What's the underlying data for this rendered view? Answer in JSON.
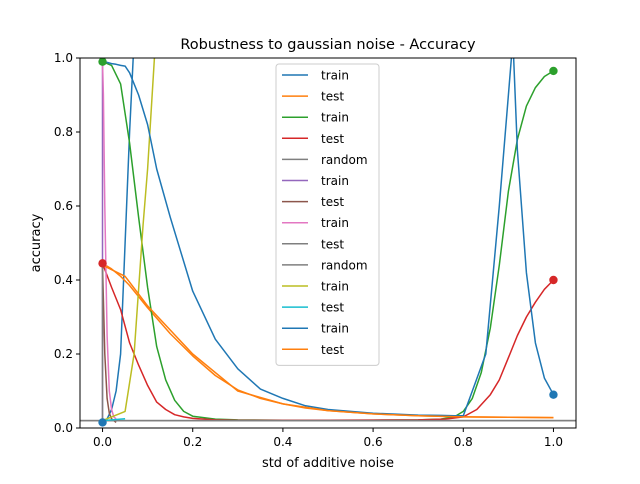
{
  "chart_data": {
    "type": "line",
    "title": "Robustness to gaussian noise - Accuracy",
    "xlabel": "std of additive noise",
    "ylabel": "accuracy",
    "xlim": [
      -0.05,
      1.05
    ],
    "ylim": [
      0.0,
      1.0
    ],
    "xticks": [
      0.0,
      0.2,
      0.4,
      0.6,
      0.8,
      1.0
    ],
    "xtick_labels": [
      "0.0",
      "0.2",
      "0.4",
      "0.6",
      "0.8",
      "1.0"
    ],
    "yticks": [
      0.0,
      0.2,
      0.4,
      0.6,
      0.8,
      1.0
    ],
    "ytick_labels": [
      "0.0",
      "0.2",
      "0.4",
      "0.6",
      "0.8",
      "1.0"
    ],
    "grid": false,
    "legend_position": "upper center",
    "series": [
      {
        "name": "train",
        "color": "#1f77b4",
        "x": [
          0.0,
          0.01,
          0.02,
          0.03,
          0.04,
          0.05,
          0.06,
          0.07
        ],
        "y": [
          0.015,
          0.025,
          0.05,
          0.1,
          0.2,
          0.5,
          0.8,
          1.05
        ]
      },
      {
        "name": "test",
        "color": "#ff7f0e",
        "x": [
          0.0,
          0.02,
          0.04,
          0.06,
          0.08,
          0.1,
          0.15,
          0.2,
          0.25,
          0.3,
          0.35,
          0.4,
          0.45,
          0.5,
          0.6,
          0.7,
          0.8,
          0.9,
          1.0
        ],
        "y": [
          0.445,
          0.43,
          0.41,
          0.385,
          0.355,
          0.325,
          0.255,
          0.195,
          0.142,
          0.103,
          0.08,
          0.065,
          0.054,
          0.047,
          0.038,
          0.033,
          0.03,
          0.029,
          0.028
        ]
      },
      {
        "name": "train",
        "color": "#2ca02c",
        "x": [
          0.0,
          0.02,
          0.04,
          0.06,
          0.08,
          0.1,
          0.12,
          0.14,
          0.16,
          0.18,
          0.2,
          0.25,
          0.3,
          0.4,
          0.5,
          0.6,
          0.7,
          0.75,
          0.78,
          0.8,
          0.82,
          0.84,
          0.86,
          0.88,
          0.9,
          0.92,
          0.94,
          0.96,
          0.98,
          1.0
        ],
        "y": [
          0.99,
          0.98,
          0.93,
          0.77,
          0.57,
          0.38,
          0.22,
          0.13,
          0.075,
          0.045,
          0.032,
          0.024,
          0.022,
          0.021,
          0.021,
          0.021,
          0.022,
          0.024,
          0.03,
          0.045,
          0.08,
          0.15,
          0.27,
          0.44,
          0.64,
          0.78,
          0.87,
          0.92,
          0.95,
          0.965
        ]
      },
      {
        "name": "test",
        "color": "#d62728",
        "x": [
          0.0,
          0.02,
          0.04,
          0.06,
          0.08,
          0.1,
          0.12,
          0.14,
          0.16,
          0.18,
          0.2,
          0.25,
          0.3,
          0.5,
          0.7,
          0.76,
          0.8,
          0.83,
          0.86,
          0.88,
          0.9,
          0.92,
          0.94,
          0.96,
          0.98,
          1.0
        ],
        "y": [
          0.445,
          0.38,
          0.32,
          0.23,
          0.17,
          0.115,
          0.07,
          0.05,
          0.036,
          0.03,
          0.026,
          0.022,
          0.021,
          0.021,
          0.022,
          0.024,
          0.03,
          0.05,
          0.09,
          0.13,
          0.19,
          0.25,
          0.3,
          0.34,
          0.375,
          0.4
        ]
      },
      {
        "name": "random",
        "color": "#7f7f7f",
        "x": [
          -0.05,
          1.05
        ],
        "y": [
          0.02,
          0.02
        ]
      },
      {
        "name": "train",
        "color": "#9467bd",
        "x": [
          0.0,
          0.0
        ],
        "y": [
          0.99,
          0.02
        ]
      },
      {
        "name": "test",
        "color": "#8c564b",
        "x": [
          0.0,
          0.005,
          0.01,
          0.015,
          0.02,
          0.03
        ],
        "y": [
          0.44,
          0.2,
          0.08,
          0.04,
          0.025,
          0.015
        ]
      },
      {
        "name": "train",
        "color": "#e377c2",
        "x": [
          0.0,
          0.002,
          0.005,
          0.01,
          0.015,
          0.02,
          0.025,
          0.03
        ],
        "y": [
          0.99,
          0.9,
          0.6,
          0.25,
          0.1,
          0.05,
          0.03,
          0.025
        ]
      },
      {
        "name": "test",
        "color": "#7f7f7f",
        "x": [
          0.0,
          0.0
        ],
        "y": [
          0.44,
          0.02
        ]
      },
      {
        "name": "random",
        "color": "#7f7f7f",
        "x": [
          -0.05,
          1.05
        ],
        "y": [
          0.02,
          0.02
        ]
      },
      {
        "name": "train",
        "color": "#bcbd22",
        "x": [
          0.0,
          0.02,
          0.05,
          0.07,
          0.09,
          0.1,
          0.12
        ],
        "y": [
          0.02,
          0.03,
          0.045,
          0.2,
          0.55,
          0.7,
          1.1
        ]
      },
      {
        "name": "test",
        "color": "#17becf",
        "x": [
          0.0,
          0.02,
          0.05
        ],
        "y": [
          0.02,
          0.022,
          0.025
        ]
      },
      {
        "name": "train",
        "color": "#1f77b4",
        "x": [
          0.0,
          0.01,
          0.02,
          0.03,
          0.04,
          0.05,
          0.06,
          0.08,
          0.1,
          0.12,
          0.15,
          0.2,
          0.25,
          0.3,
          0.35,
          0.4,
          0.45,
          0.5,
          0.6,
          0.7,
          0.75,
          0.78,
          0.8,
          0.85,
          0.88,
          0.9,
          0.91,
          0.92,
          0.94,
          0.96,
          0.98,
          1.0
        ],
        "y": [
          0.99,
          0.988,
          0.985,
          0.983,
          0.98,
          0.978,
          0.96,
          0.9,
          0.82,
          0.7,
          0.57,
          0.37,
          0.24,
          0.16,
          0.105,
          0.08,
          0.06,
          0.05,
          0.04,
          0.035,
          0.034,
          0.033,
          0.033,
          0.2,
          0.6,
          0.9,
          1.05,
          0.75,
          0.42,
          0.23,
          0.135,
          0.09
        ]
      },
      {
        "name": "test",
        "color": "#ff7f0e",
        "x": [
          0.0,
          0.05,
          0.1,
          0.2,
          0.3,
          0.4,
          0.5,
          0.6,
          0.7,
          0.8,
          0.9,
          1.0
        ],
        "y": [
          0.44,
          0.41,
          0.33,
          0.2,
          0.1,
          0.065,
          0.047,
          0.038,
          0.033,
          0.03,
          0.029,
          0.028
        ]
      }
    ],
    "markers": [
      {
        "x": 0.0,
        "y": 0.015,
        "color": "#1f77b4"
      },
      {
        "x": 0.0,
        "y": 0.99,
        "color": "#2ca02c"
      },
      {
        "x": 0.0,
        "y": 0.445,
        "color": "#d62728"
      },
      {
        "x": 1.0,
        "y": 0.965,
        "color": "#2ca02c"
      },
      {
        "x": 1.0,
        "y": 0.4,
        "color": "#d62728"
      },
      {
        "x": 1.0,
        "y": 0.09,
        "color": "#1f77b4"
      }
    ]
  }
}
